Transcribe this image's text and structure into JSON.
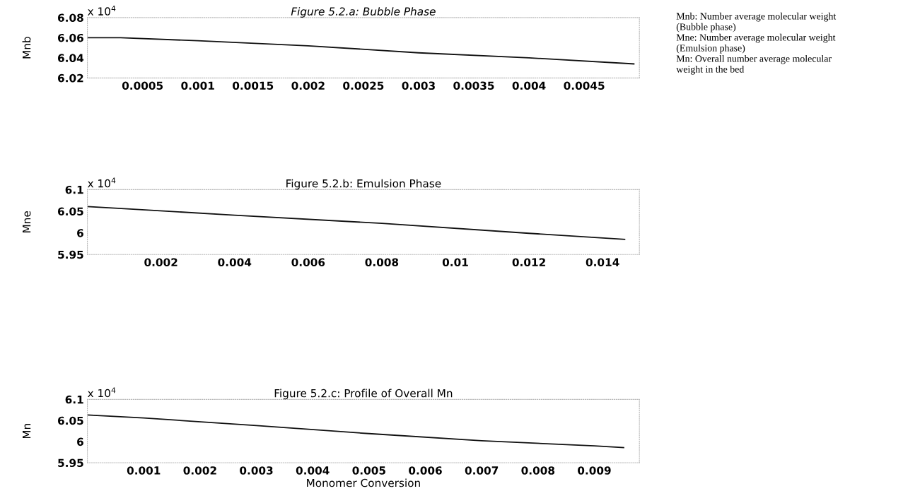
{
  "chart_data": [
    {
      "type": "line",
      "title": "Figure 5.2.a: Bubble Phase",
      "ylabel": "Mnb",
      "x": [
        0,
        0.0003,
        0.001,
        0.002,
        0.003,
        0.004,
        0.00495
      ],
      "series": [
        {
          "color": "#111111",
          "values": [
            6.06,
            6.06,
            6.057,
            6.052,
            6.045,
            6.04,
            6.034
          ]
        }
      ],
      "xlim": [
        0,
        0.005
      ],
      "xticks": [
        0.0005,
        0.001,
        0.0015,
        0.002,
        0.0025,
        0.003,
        0.0035,
        0.004,
        0.0045
      ],
      "ylim": [
        6.02,
        6.08
      ],
      "yticks": [
        6.02,
        6.04,
        6.06,
        6.08
      ],
      "annotations": [
        "x 10$^{4}$",
        "Mnb: Number average molecular weight\n(Bubble phase)\nMne: Number average molecular weight\n(Emulsion phase)\nMn: Overall number average molecular\nweight in the bed"
      ],
      "grid": false,
      "legend": false
    },
    {
      "type": "line",
      "title": "Figure 5.2.b: Emulsion Phase",
      "ylabel": "Mne",
      "x": [
        0,
        0.001,
        0.004,
        0.008,
        0.012,
        0.0146
      ],
      "series": [
        {
          "color": "#111111",
          "values": [
            6.061,
            6.056,
            6.041,
            6.022,
            5.999,
            5.985
          ]
        }
      ],
      "xlim": [
        0,
        0.015
      ],
      "xticks": [
        0.002,
        0.004,
        0.006,
        0.008,
        0.01,
        0.012,
        0.014
      ],
      "ylim": [
        5.95,
        6.1
      ],
      "yticks": [
        5.95,
        6,
        6.05,
        6.1
      ],
      "annotations": [
        "x 10$^{4}$"
      ],
      "grid": false,
      "legend": false
    },
    {
      "type": "line",
      "title": "Figure 5.2.c: Profile of Overall Mn",
      "ylabel": "Mn",
      "xlabel": "Monomer Conversion",
      "x": [
        0,
        0.001,
        0.003,
        0.005,
        0.007,
        0.009,
        0.00952
      ],
      "series": [
        {
          "color": "#111111",
          "values": [
            6.063,
            6.056,
            6.038,
            6.019,
            6.002,
            5.99,
            5.986
          ]
        }
      ],
      "xlim": [
        0,
        0.0098
      ],
      "xticks": [
        0.001,
        0.002,
        0.003,
        0.004,
        0.005,
        0.006,
        0.007,
        0.008,
        0.009
      ],
      "ylim": [
        5.95,
        6.1
      ],
      "yticks": [
        5.95,
        6,
        6.05,
        6.1
      ],
      "annotations": [
        "x 10$^{4}$"
      ],
      "grid": false,
      "legend": false
    }
  ]
}
